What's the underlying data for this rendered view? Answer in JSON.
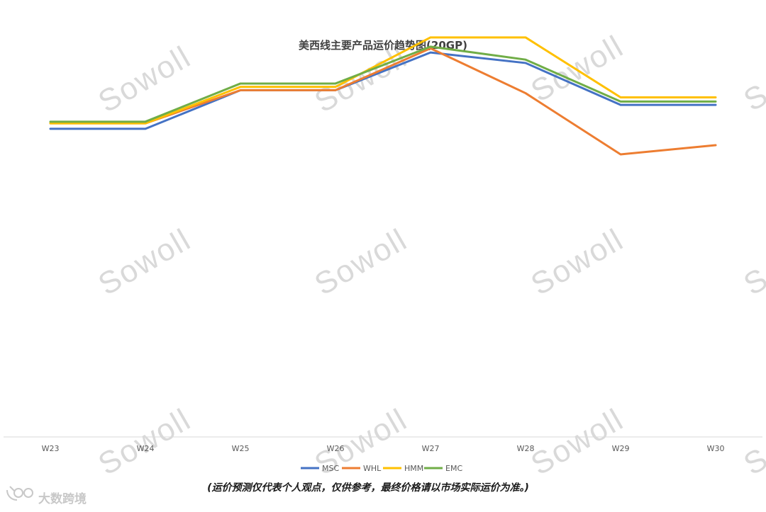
{
  "chart_data": {
    "type": "line",
    "title": "美西线主要产品运价趋势图(20GP)",
    "xlabel": "",
    "ylabel": "",
    "categories": [
      "W23",
      "W24",
      "W25",
      "W26",
      "W27",
      "W28",
      "W29",
      "W30"
    ],
    "ylim": [
      0,
      10
    ],
    "y_axis_labels_shown": false,
    "grid": false,
    "legend_position": "bottom",
    "series": [
      {
        "name": "MSC",
        "color": "#4472C4",
        "values": [
          7.35,
          7.35,
          8.27,
          8.27,
          9.17,
          8.92,
          7.92,
          7.92
        ]
      },
      {
        "name": "WHL",
        "color": "#ED7D31",
        "values": [
          7.48,
          7.48,
          8.27,
          8.27,
          9.27,
          8.2,
          6.74,
          6.96
        ]
      },
      {
        "name": "HMM",
        "color": "#FFC000",
        "values": [
          7.48,
          7.48,
          8.35,
          8.35,
          9.53,
          9.53,
          8.1,
          8.1
        ]
      },
      {
        "name": "EMC",
        "color": "#70AD47",
        "values": [
          7.52,
          7.52,
          8.43,
          8.43,
          9.31,
          9.0,
          8.0,
          8.0
        ]
      }
    ]
  },
  "watermark": {
    "text": "Sowoll",
    "color": "#d9d9d9"
  },
  "footer": {
    "disclaimer": "(运价预测仅代表个人观点，仅供参考，最终价格请以市场实际运价为准。)",
    "brand_text": "大数跨境"
  }
}
